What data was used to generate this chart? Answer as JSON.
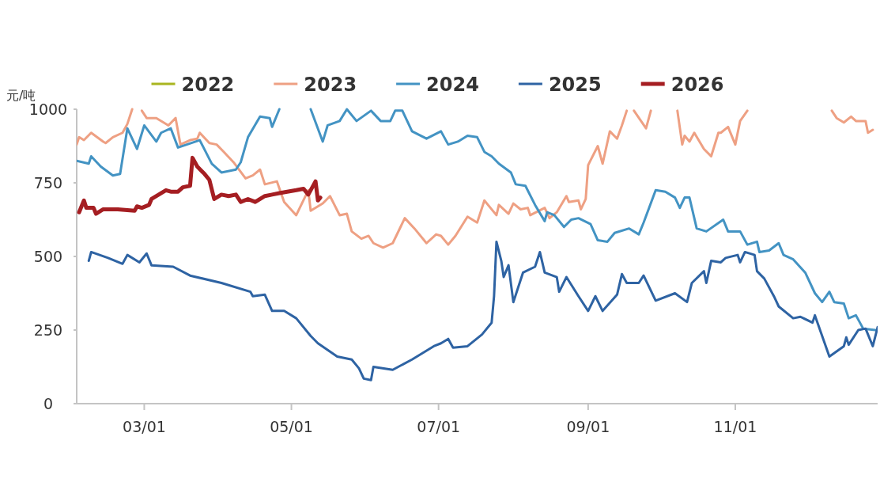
{
  "chart_data": {
    "type": "line",
    "ylabel": "元/吨",
    "legend": "top",
    "grid": false,
    "line_style": "solid",
    "xlim": [
      "--02-01",
      "--12-30"
    ],
    "xticks": [
      {
        "value": "--03-01",
        "label": "03/01"
      },
      {
        "value": "--05-01",
        "label": "05/01"
      },
      {
        "value": "--07-01",
        "label": "07/01"
      },
      {
        "value": "--09-01",
        "label": "09/01"
      },
      {
        "value": "--11-01",
        "label": "11/01"
      }
    ],
    "ylim": [
      0,
      1000
    ],
    "yticks": [
      0,
      250,
      500,
      750,
      1000
    ],
    "series": [
      {
        "name": "2022",
        "color": "#a9b51f"
      },
      {
        "name": "2023",
        "color": "#eea083",
        "x": [
          "--02-01",
          "--02-02",
          "--02-04",
          "--02-07",
          "--02-12",
          "--02-13",
          "--02-16",
          "--02-20",
          "--02-22",
          "--02-24",
          "--02-26",
          "--02-28",
          "--03-02",
          "--03-06",
          "--03-09",
          "--03-11",
          "--03-14",
          "--03-16",
          "--03-20",
          "--03-23",
          "--03-24",
          "--03-28",
          "--03-31",
          "--04-03",
          "--04-07",
          "--04-12",
          "--04-15",
          "--04-18",
          "--04-20",
          "--04-25",
          "--04-28",
          "--05-03",
          "--05-08",
          "--05-09",
          "--05-14",
          "--05-17",
          "--05-21",
          "--05-24",
          "--05-26",
          "--05-30",
          "--06-02",
          "--06-04",
          "--06-08",
          "--06-12",
          "--06-17",
          "--06-21",
          "--06-26",
          "--06-30",
          "--07-02",
          "--07-05",
          "--07-08",
          "--07-13",
          "--07-17",
          "--07-20",
          "--07-25",
          "--07-26",
          "--07-30",
          "--08-01",
          "--08-04",
          "--08-07",
          "--08-08",
          "--08-14",
          "--08-16",
          "--08-19",
          "--08-23",
          "--08-24",
          "--08-28",
          "--08-29",
          "--08-31",
          "--09-01",
          "--09-05",
          "--09-07",
          "--09-10",
          "--09-13",
          "--09-15",
          "--09-17",
          "--09-19",
          "--09-20",
          "--09-25",
          "--09-27",
          "--10-05",
          "--10-08",
          "--10-10",
          "--10-11",
          "--10-13",
          "--10-15",
          "--10-19",
          "--10-22",
          "--10-25",
          "--10-26",
          "--10-29",
          "--11-01",
          "--11-03",
          "--11-06",
          "--11-25",
          "--12-11",
          "--12-13",
          "--12-16",
          "--12-19",
          "--12-21",
          "--12-25",
          "--12-26",
          "--12-28"
        ],
        "values": [
          880,
          905,
          895,
          920,
          890,
          885,
          905,
          920,
          950,
          1000,
          null,
          995,
          970,
          970,
          955,
          945,
          970,
          880,
          895,
          900,
          920,
          885,
          880,
          855,
          820,
          765,
          775,
          795,
          745,
          755,
          685,
          640,
          725,
          655,
          680,
          705,
          640,
          645,
          585,
          560,
          570,
          545,
          530,
          545,
          630,
          595,
          545,
          575,
          570,
          540,
          570,
          635,
          615,
          690,
          640,
          675,
          645,
          680,
          660,
          665,
          640,
          665,
          630,
          650,
          705,
          685,
          690,
          660,
          695,
          810,
          875,
          815,
          925,
          900,
          945,
          995,
          null,
          995,
          935,
          995,
          null,
          995,
          880,
          910,
          890,
          920,
          865,
          840,
          920,
          920,
          940,
          880,
          960,
          995,
          null,
          995,
          970,
          955,
          975,
          960,
          960,
          920,
          930
        ]
      },
      {
        "name": "2024",
        "color": "#4393c3",
        "x": [
          "--02-01",
          "--02-06",
          "--02-07",
          "--02-11",
          "--02-16",
          "--02-19",
          "--02-22",
          "--02-26",
          "--03-01",
          "--03-06",
          "--03-08",
          "--03-12",
          "--03-15",
          "--03-24",
          "--03-29",
          "--04-02",
          "--04-08",
          "--04-10",
          "--04-13",
          "--04-18",
          "--04-22",
          "--04-23",
          "--04-26",
          "--05-03",
          "--05-09",
          "--05-14",
          "--05-16",
          "--05-21",
          "--05-24",
          "--05-28",
          "--06-03",
          "--06-07",
          "--06-11",
          "--06-13",
          "--06-16",
          "--06-20",
          "--06-26",
          "--07-02",
          "--07-05",
          "--07-09",
          "--07-13",
          "--07-17",
          "--07-20",
          "--07-23",
          "--07-26",
          "--07-31",
          "--08-02",
          "--08-06",
          "--08-10",
          "--08-14",
          "--08-15",
          "--08-18",
          "--08-22",
          "--08-25",
          "--08-28",
          "--09-02",
          "--09-05",
          "--09-09",
          "--09-12",
          "--09-18",
          "--09-22",
          "--09-24",
          "--09-29",
          "--10-03",
          "--10-07",
          "--10-09",
          "--10-11",
          "--10-13",
          "--10-16",
          "--10-20",
          "--10-27",
          "--10-29",
          "--11-03",
          "--11-06",
          "--11-10",
          "--11-11",
          "--11-15",
          "--11-19",
          "--11-21",
          "--11-25",
          "--11-30",
          "--12-04",
          "--12-07",
          "--12-10",
          "--12-12",
          "--12-16",
          "--12-18",
          "--12-21",
          "--12-24",
          "--12-29"
        ],
        "values": [
          825,
          815,
          840,
          805,
          775,
          780,
          935,
          865,
          945,
          890,
          920,
          935,
          870,
          895,
          815,
          785,
          795,
          820,
          905,
          975,
          970,
          940,
          1000,
          null,
          1000,
          890,
          945,
          960,
          1000,
          960,
          995,
          960,
          960,
          995,
          995,
          925,
          900,
          925,
          880,
          890,
          910,
          905,
          855,
          840,
          815,
          785,
          745,
          740,
          675,
          620,
          650,
          640,
          600,
          625,
          630,
          610,
          555,
          550,
          580,
          595,
          575,
          615,
          725,
          720,
          700,
          665,
          700,
          700,
          595,
          585,
          625,
          585,
          585,
          540,
          550,
          515,
          520,
          545,
          505,
          490,
          445,
          375,
          345,
          380,
          345,
          340,
          290,
          300,
          255,
          250
        ]
      },
      {
        "name": "2025",
        "color": "#2e63a3",
        "x": [
          "--02-06",
          "--02-07",
          "--02-14",
          "--02-20",
          "--02-22",
          "--02-27",
          "--03-02",
          "--03-04",
          "--03-13",
          "--03-20",
          "--04-02",
          "--04-14",
          "--04-15",
          "--04-20",
          "--04-23",
          "--04-28",
          "--05-03",
          "--05-09",
          "--05-12",
          "--05-20",
          "--05-26",
          "--05-29",
          "--05-31",
          "--06-03",
          "--06-04",
          "--06-12",
          "--06-20",
          "--06-29",
          "--07-02",
          "--07-05",
          "--07-07",
          "--07-13",
          "--07-19",
          "--07-23",
          "--07-24",
          "--07-25",
          "--07-27",
          "--07-28",
          "--07-30",
          "--08-01",
          "--08-05",
          "--08-10",
          "--08-12",
          "--08-14",
          "--08-19",
          "--08-20",
          "--08-23",
          "--08-28",
          "--09-01",
          "--09-04",
          "--09-07",
          "--09-13",
          "--09-15",
          "--09-17",
          "--09-22",
          "--09-24",
          "--09-29",
          "--10-07",
          "--10-12",
          "--10-14",
          "--10-19",
          "--10-20",
          "--10-22",
          "--10-26",
          "--10-28",
          "--11-02",
          "--11-03",
          "--11-05",
          "--11-09",
          "--11-10",
          "--11-13",
          "--11-17",
          "--11-19",
          "--11-25",
          "--11-28",
          "--12-03",
          "--12-04",
          "--12-10",
          "--12-16",
          "--12-17",
          "--12-18",
          "--12-22",
          "--12-25",
          "--12-28",
          "--12-30"
        ],
        "values": [
          485,
          515,
          495,
          475,
          505,
          480,
          510,
          470,
          465,
          435,
          410,
          380,
          365,
          370,
          315,
          315,
          290,
          230,
          205,
          160,
          150,
          120,
          85,
          80,
          125,
          115,
          150,
          195,
          205,
          220,
          190,
          195,
          235,
          275,
          365,
          550,
          485,
          430,
          470,
          345,
          445,
          465,
          515,
          445,
          430,
          380,
          430,
          365,
          315,
          365,
          315,
          370,
          440,
          410,
          410,
          435,
          350,
          375,
          345,
          410,
          450,
          410,
          485,
          480,
          495,
          505,
          480,
          515,
          505,
          450,
          425,
          365,
          330,
          290,
          295,
          275,
          300,
          160,
          195,
          225,
          200,
          250,
          255,
          195,
          260
        ]
      },
      {
        "name": "2026",
        "color": "#a51e22",
        "x": [
          "--02-02",
          "--02-04",
          "--02-05",
          "--02-08",
          "--02-09",
          "--02-12",
          "--02-18",
          "--02-25",
          "--02-26",
          "--02-28",
          "--03-03",
          "--03-04",
          "--03-07",
          "--03-10",
          "--03-12",
          "--03-15",
          "--03-17",
          "--03-20",
          "--03-21",
          "--03-23",
          "--03-26",
          "--03-28",
          "--03-30",
          "--04-02",
          "--04-05",
          "--04-08",
          "--04-10",
          "--04-13",
          "--04-16",
          "--04-20",
          "--04-23",
          "--04-26",
          "--05-03",
          "--05-06",
          "--05-08",
          "--05-11",
          "--05-12",
          "--05-13"
        ],
        "values": [
          650,
          690,
          665,
          665,
          645,
          660,
          660,
          655,
          670,
          665,
          675,
          695,
          710,
          725,
          720,
          720,
          735,
          740,
          835,
          805,
          780,
          760,
          695,
          710,
          705,
          710,
          685,
          695,
          685,
          705,
          710,
          715,
          725,
          730,
          710,
          755,
          690,
          700
        ]
      }
    ]
  }
}
